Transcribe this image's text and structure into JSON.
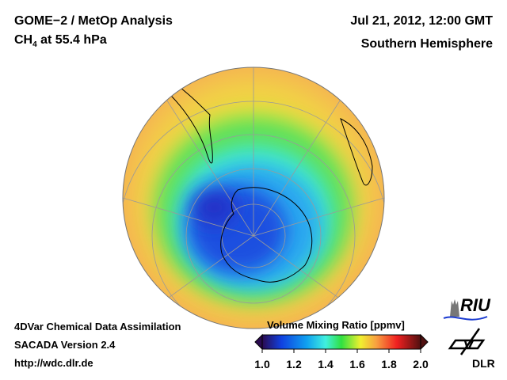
{
  "header": {
    "title": "GOME−2 / MetOp Analysis",
    "species": "CH",
    "species_sub": "4",
    "level": " at 55.4 hPa",
    "datetime": "Jul 21, 2012, 12:00 GMT",
    "region": "Southern Hemisphere"
  },
  "footer": {
    "line1": "4DVar Chemical Data Assimilation",
    "line2": "SACADA Version 2.4",
    "url": "http://wdc.dlr.de"
  },
  "colorbar": {
    "title": "Volume Mixing Ratio [ppmv]",
    "ticks": [
      "1.0",
      "1.2",
      "1.4",
      "1.6",
      "1.8",
      "2.0"
    ],
    "range": [
      1.0,
      2.0
    ],
    "colors": [
      "#2a0a50",
      "#1040e0",
      "#10a0f0",
      "#40f0e0",
      "#30e040",
      "#f0f030",
      "#f8a040",
      "#f02020",
      "#501010"
    ]
  },
  "logos": {
    "riu": "RIU",
    "dlr": "DLR"
  }
}
